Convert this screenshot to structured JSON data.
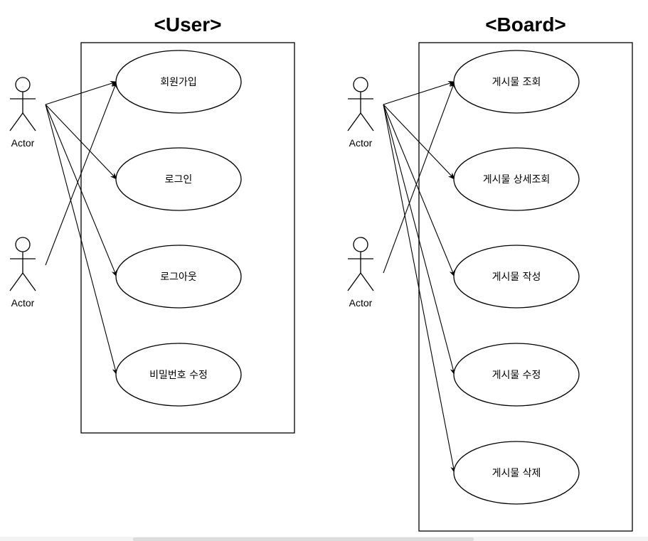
{
  "boundaries": [
    {
      "id": "user",
      "title": "<User>"
    },
    {
      "id": "board",
      "title": "<Board>"
    }
  ],
  "use_cases": {
    "user": [
      {
        "id": "signup",
        "label": "회원가입"
      },
      {
        "id": "login",
        "label": "로그인"
      },
      {
        "id": "logout",
        "label": "로그아웃"
      },
      {
        "id": "pw-change",
        "label": "비밀번호 수정"
      }
    ],
    "board": [
      {
        "id": "post-list",
        "label": "게시물 조회"
      },
      {
        "id": "post-detail",
        "label": "게시물 상세조회"
      },
      {
        "id": "post-write",
        "label": "게시물 작성"
      },
      {
        "id": "post-edit",
        "label": "게시물 수정"
      },
      {
        "id": "post-delete",
        "label": "게시물 삭제"
      }
    ]
  },
  "actors": {
    "user": [
      {
        "id": "user-actor-1",
        "label": "Actor"
      },
      {
        "id": "user-actor-2",
        "label": "Actor"
      }
    ],
    "board": [
      {
        "id": "board-actor-1",
        "label": "Actor"
      },
      {
        "id": "board-actor-2",
        "label": "Actor"
      }
    ]
  },
  "associations": [
    {
      "from": "user-actor-1",
      "to": "signup"
    },
    {
      "from": "user-actor-1",
      "to": "login"
    },
    {
      "from": "user-actor-1",
      "to": "logout"
    },
    {
      "from": "user-actor-1",
      "to": "pw-change"
    },
    {
      "from": "user-actor-2",
      "to": "signup"
    },
    {
      "from": "board-actor-1",
      "to": "post-list"
    },
    {
      "from": "board-actor-1",
      "to": "post-detail"
    },
    {
      "from": "board-actor-1",
      "to": "post-write"
    },
    {
      "from": "board-actor-1",
      "to": "post-edit"
    },
    {
      "from": "board-actor-1",
      "to": "post-delete"
    },
    {
      "from": "board-actor-2",
      "to": "post-list"
    }
  ]
}
